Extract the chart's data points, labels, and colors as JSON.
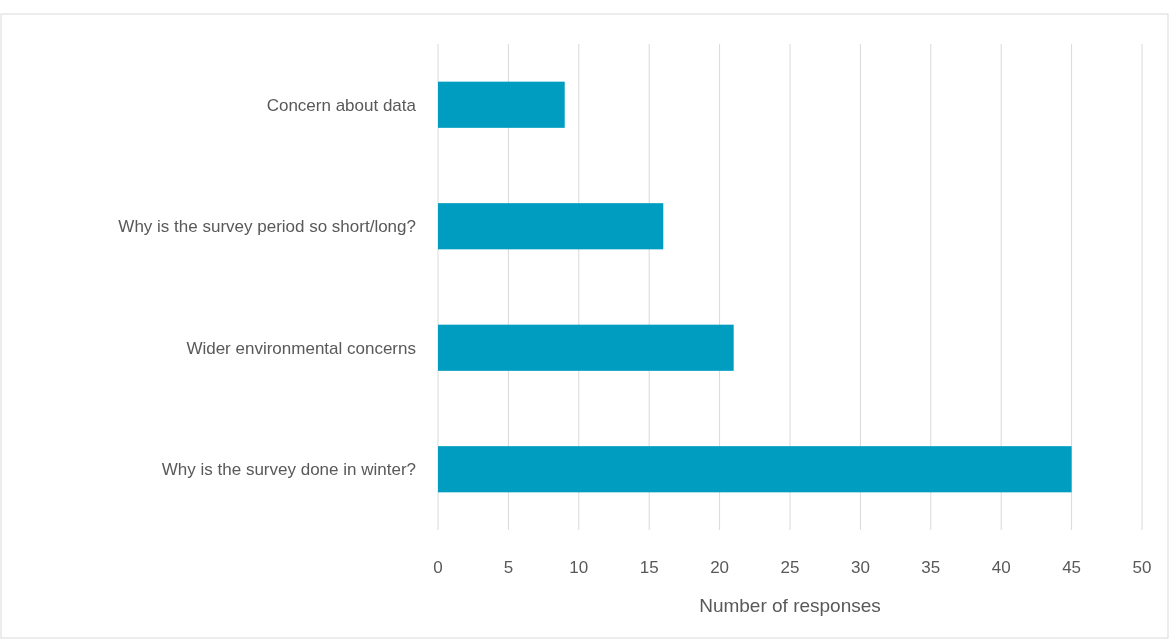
{
  "chart_data": {
    "type": "bar",
    "orientation": "horizontal",
    "xlabel": "Number of responses",
    "categories": [
      "Concern about data",
      "Why is the survey period so short/long?",
      "Wider environmental concerns",
      "Why is the survey done in winter?"
    ],
    "values": [
      9,
      16,
      21,
      45
    ],
    "color": "#009dc0",
    "xlim": [
      0,
      50
    ],
    "xticks": [
      0,
      5,
      10,
      15,
      20,
      25,
      30,
      35,
      40,
      45,
      50
    ],
    "grid": "x"
  }
}
